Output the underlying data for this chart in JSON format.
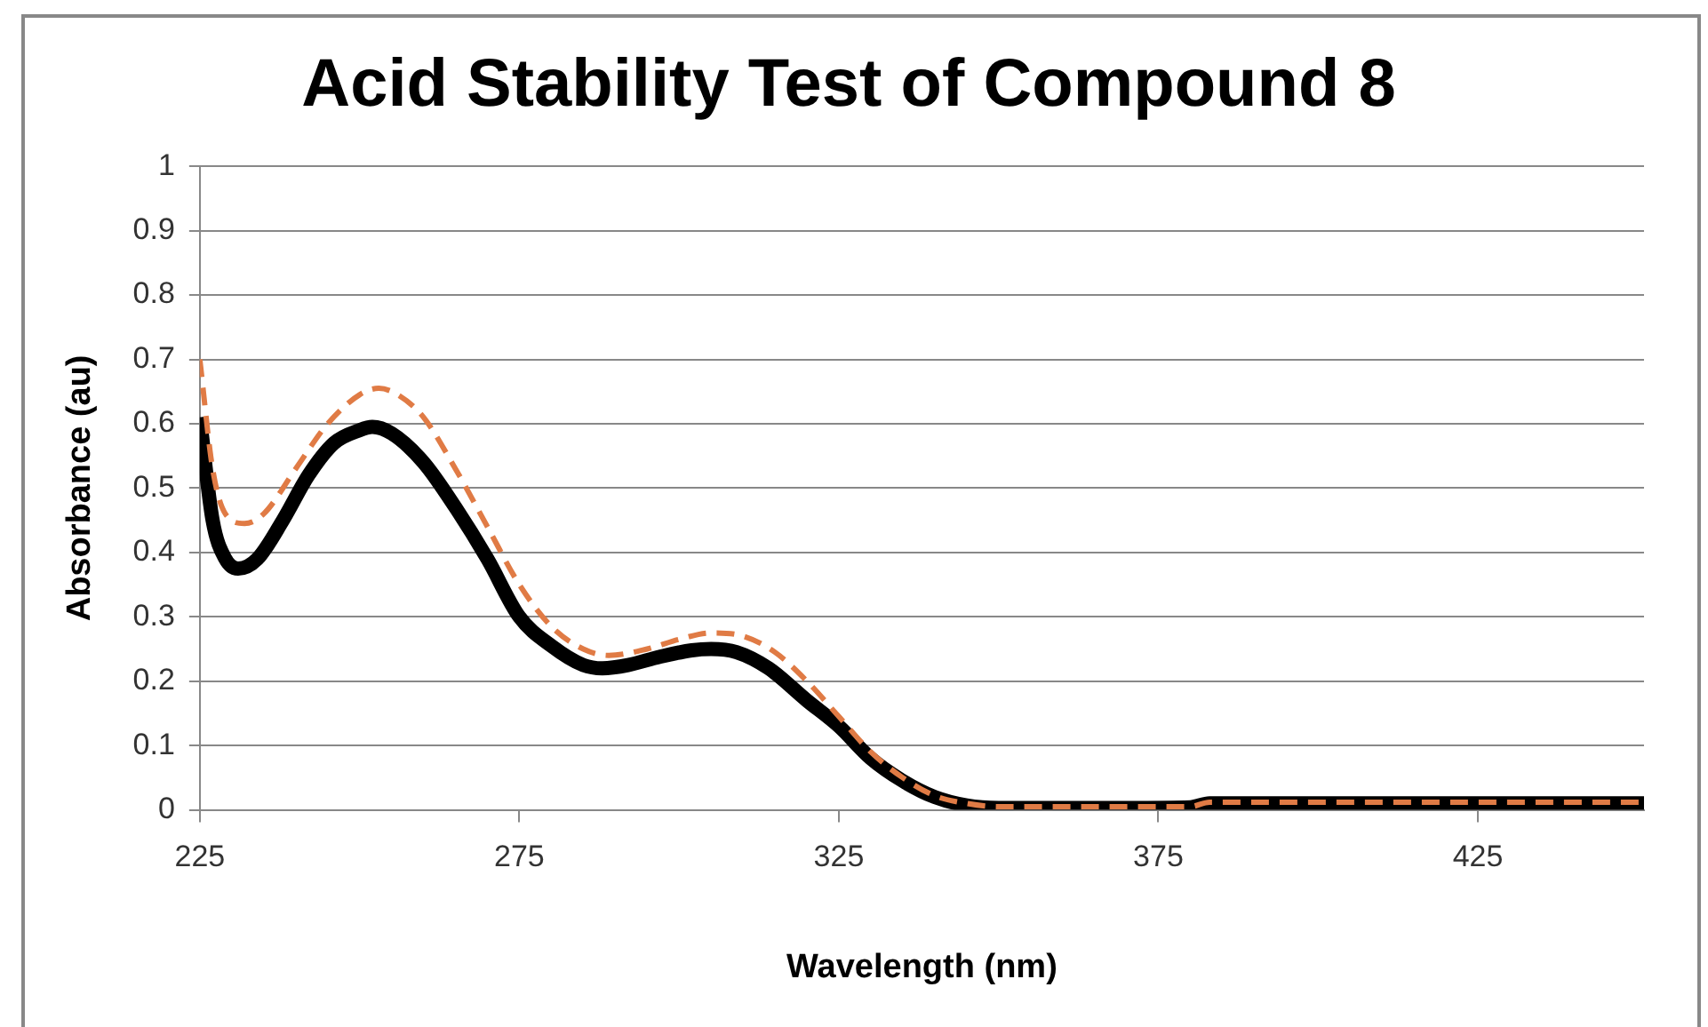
{
  "chart_data": {
    "type": "line",
    "title": "Acid Stability Test of Compound 8",
    "xlabel": "Wavelength (nm)",
    "ylabel": "Absorbance (au)",
    "xlim": [
      225,
      451
    ],
    "xticks": [
      225,
      275,
      325,
      375,
      425
    ],
    "ylim": [
      0,
      1
    ],
    "yticks": [
      0,
      0.1,
      0.2,
      0.3,
      0.4,
      0.5,
      0.6,
      0.7,
      0.8,
      0.9,
      1
    ],
    "grid": "y",
    "legend": false,
    "marker": "none",
    "series": [
      {
        "color": "#000000",
        "line_style": "solid",
        "x": [
          225,
          227,
          229,
          231,
          234,
          238,
          242,
          246,
          250,
          252,
          255,
          260,
          265,
          270,
          275,
          280,
          285,
          288,
          292,
          297,
          302,
          305,
          309,
          314,
          320,
          325,
          330,
          335,
          340,
          345,
          350,
          360,
          370,
          380,
          383,
          400,
          425,
          451
        ],
        "values": [
          0.61,
          0.45,
          0.39,
          0.375,
          0.39,
          0.45,
          0.52,
          0.57,
          0.59,
          0.595,
          0.585,
          0.54,
          0.47,
          0.39,
          0.3,
          0.255,
          0.225,
          0.22,
          0.225,
          0.238,
          0.248,
          0.25,
          0.245,
          0.22,
          0.17,
          0.13,
          0.08,
          0.045,
          0.02,
          0.007,
          0.003,
          0.003,
          0.003,
          0.004,
          0.01,
          0.01,
          0.01,
          0.01
        ]
      },
      {
        "color": "#e07b45",
        "line_style": "dashed",
        "x": [
          225,
          227,
          229,
          232,
          235,
          240,
          245,
          250,
          253,
          256,
          260,
          265,
          270,
          275,
          280,
          285,
          289,
          295,
          300,
          305,
          310,
          315,
          320,
          325,
          330,
          335,
          340,
          345,
          350,
          380,
          383,
          451
        ],
        "values": [
          0.7,
          0.53,
          0.46,
          0.445,
          0.46,
          0.53,
          0.6,
          0.645,
          0.655,
          0.645,
          0.61,
          0.53,
          0.44,
          0.35,
          0.285,
          0.25,
          0.24,
          0.25,
          0.265,
          0.275,
          0.27,
          0.245,
          0.2,
          0.145,
          0.09,
          0.05,
          0.022,
          0.01,
          0.005,
          0.005,
          0.012,
          0.012
        ]
      }
    ]
  }
}
